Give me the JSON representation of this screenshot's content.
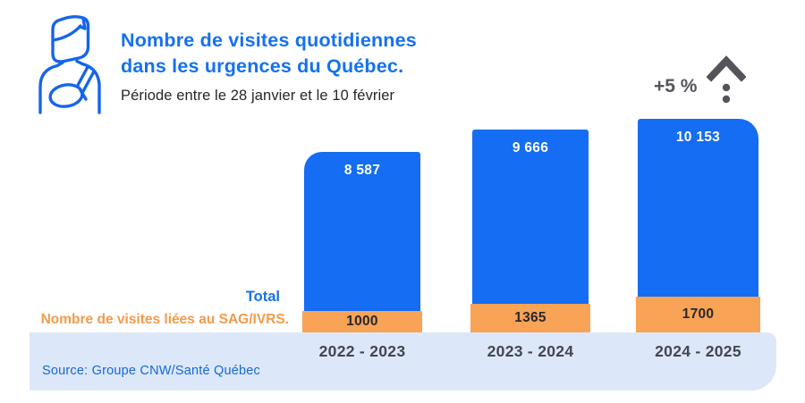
{
  "header": {
    "title_line1": "Nombre de visites quotidiennes",
    "title_line2": "dans les urgences du Québec.",
    "subtitle": "Période entre le 28 janvier et le 10 février"
  },
  "delta_badge": {
    "label": "+5 %",
    "icon": "trend-up-icon"
  },
  "legend": {
    "total_label": "Total",
    "sag_label": "Nombre de visites liées au SAG/IVRS."
  },
  "source": "Source: Groupe CNW/Santé Québec",
  "icons": {
    "header_icon": "patient-arm-sling-icon"
  },
  "colors": {
    "bar_blue": "#146DF2",
    "bar_orange": "#F8A355",
    "band_background": "#DCE8F9",
    "title_blue": "#1471F0",
    "legend_orange": "#F49A4B",
    "source_blue": "#1767D8",
    "dark_text": "#28282F",
    "gray_text": "#54545C",
    "year_text": "#45454E",
    "icon_blue": "#1565EB"
  },
  "chart_data": {
    "type": "bar",
    "stacked": true,
    "title": "Nombre de visites quotidiennes dans les urgences du Québec.",
    "subtitle": "Période entre le 28 janvier et le 10 février",
    "annotation": "+5 %",
    "categories": [
      "2022 - 2023",
      "2023 - 2024",
      "2024 - 2025"
    ],
    "series": [
      {
        "name": "Total",
        "color_key": "bar_blue",
        "values": [
          8587,
          9666,
          10153
        ],
        "labels": [
          "8 587",
          "9 666",
          "10 153"
        ]
      },
      {
        "name": "Nombre de visites liées au SAG/IVRS.",
        "color_key": "bar_orange",
        "values": [
          1000,
          1365,
          1700
        ],
        "labels": [
          "1000",
          "1365",
          "1700"
        ]
      }
    ],
    "ylim": [
      0,
      10800
    ],
    "grid": false,
    "legend_position": "left-bottom",
    "value_labels": "inside"
  }
}
